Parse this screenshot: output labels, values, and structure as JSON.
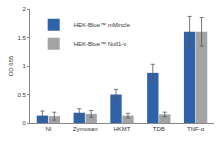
{
  "chart_data": {
    "type": "bar",
    "y_label": "OD 655",
    "categories": [
      "NI",
      "Zymosan",
      "HKMT",
      "TDB",
      "TNF-α"
    ],
    "series": [
      {
        "name": "HEK-Blue™ mMincle",
        "color": "#2f62a8",
        "values": [
          0.13,
          0.18,
          0.5,
          0.88,
          1.6
        ],
        "errors": [
          0.08,
          0.07,
          0.09,
          0.15,
          0.27
        ]
      },
      {
        "name": "HEK-Blue™ Null1-v",
        "color": "#a3a3a3",
        "values": [
          0.12,
          0.16,
          0.13,
          0.15,
          1.6
        ],
        "errors": [
          0.07,
          0.06,
          0.04,
          0.04,
          0.25
        ]
      }
    ],
    "ylim": [
      0,
      2
    ],
    "yticks": [
      0,
      0.5,
      1,
      1.5,
      2
    ],
    "grid": false,
    "legend": "top-left"
  }
}
